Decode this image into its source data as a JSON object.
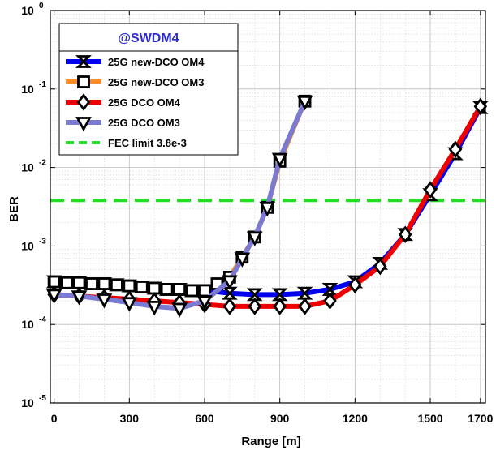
{
  "chart_data": {
    "type": "line",
    "title": "",
    "xlabel": "Range [m]",
    "ylabel": "BER",
    "xlim": [
      -15,
      1720
    ],
    "ylim": [
      1e-05,
      1
    ],
    "yscale": "log",
    "grid": true,
    "legend_position": "top-left",
    "annotation": "@SWDM4",
    "x_ticks": [
      0,
      300,
      600,
      900,
      1200,
      1500,
      1700
    ],
    "x_tick_labels": [
      "0",
      "300",
      "600",
      "900",
      "1200",
      "1500",
      "1700"
    ],
    "y_ticks": [
      1e-05,
      0.0001,
      0.001,
      0.01,
      0.1,
      1
    ],
    "y_tick_labels": [
      {
        "base": "10",
        "exp": "-5"
      },
      {
        "base": "10",
        "exp": "-4"
      },
      {
        "base": "10",
        "exp": "-3"
      },
      {
        "base": "10",
        "exp": "-2"
      },
      {
        "base": "10",
        "exp": "-1"
      },
      {
        "base": "10",
        "exp": "0"
      }
    ],
    "series": [
      {
        "name": "25G new-DCO OM4",
        "color": "#0000ee",
        "marker": "bowtie",
        "x": [
          0,
          50,
          100,
          150,
          200,
          250,
          300,
          350,
          400,
          450,
          500,
          550,
          600,
          700,
          800,
          900,
          1000,
          1100,
          1200,
          1300,
          1400,
          1500,
          1600,
          1700
        ],
        "y": [
          0.00035,
          0.00034,
          0.00034,
          0.00033,
          0.00033,
          0.00032,
          0.00031,
          0.0003,
          0.00029,
          0.00028,
          0.00028,
          0.00027,
          0.00027,
          0.00025,
          0.00024,
          0.00024,
          0.00025,
          0.00028,
          0.00035,
          0.0006,
          0.0014,
          0.0045,
          0.015,
          0.058
        ]
      },
      {
        "name": "25G new-DCO OM3",
        "color": "#ff8c2a",
        "marker": "square",
        "x": [
          0,
          50,
          100,
          150,
          200,
          250,
          300,
          350,
          400,
          450,
          500,
          550,
          600,
          650,
          700,
          750,
          800,
          850,
          900,
          1000
        ],
        "y": [
          0.00035,
          0.00034,
          0.00034,
          0.00033,
          0.00033,
          0.00032,
          0.00031,
          0.0003,
          0.00029,
          0.00028,
          0.00028,
          0.00027,
          0.00027,
          0.00033,
          0.0004,
          0.00072,
          0.0013,
          0.0031,
          0.012,
          0.07
        ]
      },
      {
        "name": "25G DCO OM4",
        "color": "#ee0000",
        "marker": "diamond",
        "x": [
          0,
          100,
          200,
          300,
          400,
          500,
          600,
          700,
          800,
          900,
          1000,
          1100,
          1200,
          1300,
          1400,
          1500,
          1600,
          1700
        ],
        "y": [
          0.00024,
          0.00023,
          0.00022,
          0.00021,
          0.0002,
          0.00019,
          0.00018,
          0.00017,
          0.00017,
          0.00017,
          0.00017,
          0.0002,
          0.00032,
          0.00055,
          0.0014,
          0.0052,
          0.017,
          0.06
        ]
      },
      {
        "name": "25G DCO OM3",
        "color": "#7a7ad0",
        "marker": "triangle-down",
        "x": [
          0,
          100,
          200,
          300,
          400,
          500,
          600,
          700,
          750,
          800,
          850,
          900,
          1000
        ],
        "y": [
          0.00024,
          0.00023,
          0.00021,
          0.00019,
          0.00017,
          0.00016,
          0.0002,
          0.00036,
          0.0007,
          0.0013,
          0.0031,
          0.013,
          0.07
        ]
      },
      {
        "name": "FEC limit 3.8e-3",
        "color": "#22dd22",
        "style": "dashed",
        "x": [
          -15,
          1720
        ],
        "y": [
          0.0038,
          0.0038
        ]
      }
    ]
  }
}
